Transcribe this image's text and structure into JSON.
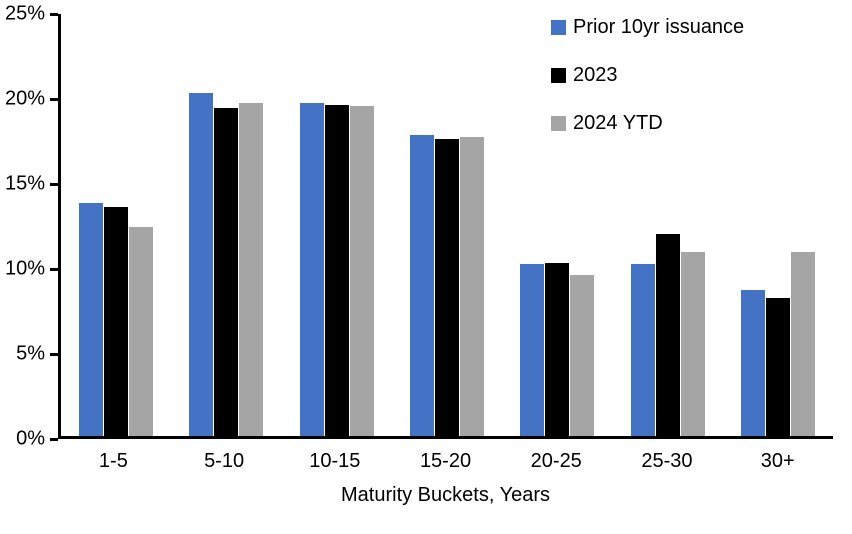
{
  "chart_data": {
    "type": "bar",
    "title": "",
    "xlabel": "Maturity Buckets, Years",
    "ylabel": "",
    "categories": [
      "1-5",
      "5-10",
      "10-15",
      "15-20",
      "20-25",
      "25-30",
      "30+"
    ],
    "series": [
      {
        "name": "Prior 10yr issuance",
        "color": "#4472C4",
        "values": [
          13.7,
          20.2,
          19.6,
          17.7,
          10.1,
          10.1,
          8.6
        ]
      },
      {
        "name": "2023",
        "color": "#000000",
        "values": [
          13.5,
          19.3,
          19.5,
          17.5,
          10.2,
          11.9,
          8.1
        ]
      },
      {
        "name": "2024 YTD",
        "color": "#A5A5A5",
        "values": [
          12.3,
          19.6,
          19.4,
          17.6,
          9.5,
          10.8,
          10.8
        ]
      }
    ],
    "ylim": [
      0,
      25
    ],
    "yticks": [
      0,
      5,
      10,
      15,
      20,
      25
    ],
    "ytick_labels": [
      "0%",
      "5%",
      "10%",
      "15%",
      "20%",
      "25%"
    ],
    "grid": false,
    "legend_position": "top-right",
    "axis_color": "#000000",
    "background_color": "#FFFFFF"
  }
}
